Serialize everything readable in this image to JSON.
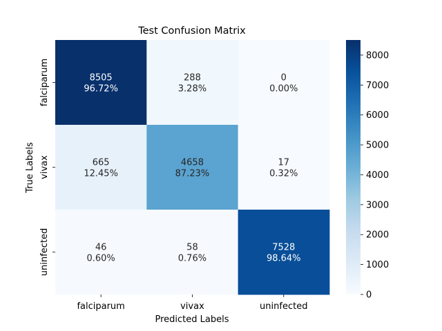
{
  "chart_data": {
    "type": "heatmap",
    "title": "Test Confusion Matrix",
    "xlabel": "Predicted Labels",
    "ylabel": "True Labels",
    "x_categories": [
      "falciparum",
      "vivax",
      "uninfected"
    ],
    "y_categories": [
      "falciparum",
      "vivax",
      "uninfected"
    ],
    "values": [
      [
        8505,
        288,
        0
      ],
      [
        665,
        4658,
        17
      ],
      [
        46,
        58,
        7528
      ]
    ],
    "percent_labels": [
      [
        "96.72%",
        "3.28%",
        "0.00%"
      ],
      [
        "12.45%",
        "87.23%",
        "0.32%"
      ],
      [
        "0.60%",
        "0.76%",
        "98.64%"
      ]
    ],
    "colorbar": {
      "colormap": "Blues",
      "range": [
        0,
        8505
      ],
      "ticks": [
        0,
        1000,
        2000,
        3000,
        4000,
        5000,
        6000,
        7000,
        8000
      ]
    },
    "grid": false
  }
}
